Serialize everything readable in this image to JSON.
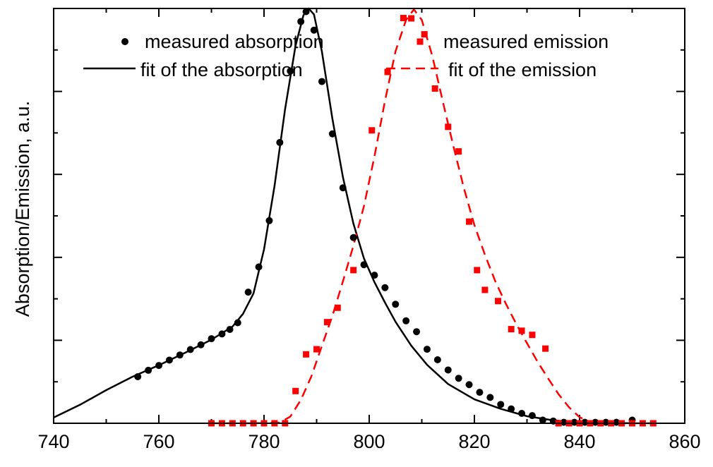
{
  "chart_data": {
    "type": "line",
    "title": "",
    "xlabel": "",
    "ylabel": "Absorption/Emission, a.u.",
    "xlim": [
      740,
      860
    ],
    "ylim": [
      0,
      1.3
    ],
    "x_ticks": [
      740,
      760,
      780,
      800,
      820,
      840,
      860
    ],
    "x_tick_labels": [
      "740",
      "760",
      "780",
      "800",
      "820",
      "840",
      "860"
    ],
    "y_ticks": [
      0.26,
      0.52,
      0.78,
      1.04
    ],
    "y_tick_labels_shown": false,
    "grid": false,
    "legend_position": "top",
    "colors": {
      "absorption": "#000000",
      "emission": "#ff0000"
    },
    "legend": [
      {
        "label": "measured absorption",
        "series": "measured_absorption"
      },
      {
        "label": "measured emission",
        "series": "measured_emission"
      },
      {
        "label": "fit of the absorption",
        "series": "fit_absorption"
      },
      {
        "label": "fit of the emission",
        "series": "fit_emission"
      }
    ],
    "series": [
      {
        "key": "measured_absorption",
        "style": "markers-circle",
        "color": "#000000",
        "points": [
          [
            756,
            0.146
          ],
          [
            758,
            0.166
          ],
          [
            760,
            0.181
          ],
          [
            762,
            0.198
          ],
          [
            764,
            0.214
          ],
          [
            766,
            0.231
          ],
          [
            768,
            0.246
          ],
          [
            770,
            0.265
          ],
          [
            772,
            0.28
          ],
          [
            773.5,
            0.294
          ],
          [
            775,
            0.315
          ],
          [
            777,
            0.411
          ],
          [
            779,
            0.49
          ],
          [
            781,
            0.635
          ],
          [
            783,
            0.88
          ],
          [
            785,
            1.104
          ],
          [
            787,
            1.259
          ],
          [
            788,
            1.29
          ],
          [
            789.5,
            1.232
          ],
          [
            791,
            1.071
          ],
          [
            793,
            0.907
          ],
          [
            795,
            0.738
          ],
          [
            797,
            0.582
          ],
          [
            799,
            0.497
          ],
          [
            801,
            0.464
          ],
          [
            803,
            0.425
          ],
          [
            805,
            0.373
          ],
          [
            807,
            0.321
          ],
          [
            809,
            0.287
          ],
          [
            811,
            0.232
          ],
          [
            813,
            0.199
          ],
          [
            815,
            0.167
          ],
          [
            817,
            0.141
          ],
          [
            819,
            0.121
          ],
          [
            821,
            0.097
          ],
          [
            823,
            0.081
          ],
          [
            825,
            0.059
          ],
          [
            827,
            0.045
          ],
          [
            829,
            0.031
          ],
          [
            831,
            0.024
          ],
          [
            833,
            0.01
          ],
          [
            835,
            0.007
          ],
          [
            837,
            0.003
          ],
          [
            839,
            0.003
          ],
          [
            841,
            0.003
          ],
          [
            843,
            0.003
          ],
          [
            845,
            0.003
          ],
          [
            847,
            0.003
          ],
          [
            850,
            0.01
          ]
        ]
      },
      {
        "key": "measured_emission",
        "style": "markers-square",
        "color": "#ff0000",
        "points": [
          [
            770,
            0.0
          ],
          [
            772,
            0.0
          ],
          [
            774,
            0.0
          ],
          [
            776,
            0.0
          ],
          [
            778,
            0.0
          ],
          [
            780,
            0.0
          ],
          [
            782,
            0.0
          ],
          [
            784,
            0.0
          ],
          [
            786,
            0.101
          ],
          [
            788,
            0.216
          ],
          [
            790,
            0.232
          ],
          [
            792,
            0.317
          ],
          [
            794,
            0.362
          ],
          [
            797,
            0.48
          ],
          [
            800.5,
            0.918
          ],
          [
            803.5,
            1.101
          ],
          [
            806.5,
            1.27
          ],
          [
            808,
            1.269
          ],
          [
            810.5,
            1.219
          ],
          [
            812.5,
            1.049
          ],
          [
            815,
            0.929
          ],
          [
            817,
            0.852
          ],
          [
            819,
            0.632
          ],
          [
            820.5,
            0.48
          ],
          [
            822,
            0.418
          ],
          [
            824.5,
            0.383
          ],
          [
            827,
            0.295
          ],
          [
            829,
            0.29
          ],
          [
            831,
            0.277
          ],
          [
            833.5,
            0.234
          ],
          [
            836,
            0.0
          ],
          [
            838,
            0.0
          ],
          [
            840,
            0.0
          ],
          [
            842,
            0.0
          ],
          [
            844,
            0.0
          ],
          [
            846,
            0.0
          ],
          [
            848,
            0.0
          ],
          [
            850,
            0.0
          ],
          [
            852,
            0.0
          ],
          [
            854,
            0.0
          ]
        ]
      },
      {
        "key": "fit_absorption",
        "style": "solid",
        "color": "#000000",
        "points": [
          [
            740,
            0.018
          ],
          [
            745,
            0.058
          ],
          [
            750,
            0.104
          ],
          [
            755,
            0.146
          ],
          [
            760,
            0.182
          ],
          [
            765,
            0.221
          ],
          [
            770,
            0.262
          ],
          [
            774,
            0.303
          ],
          [
            776,
            0.343
          ],
          [
            778,
            0.407
          ],
          [
            780,
            0.545
          ],
          [
            782,
            0.744
          ],
          [
            784,
            0.984
          ],
          [
            786,
            1.184
          ],
          [
            787.5,
            1.279
          ],
          [
            788.5,
            1.3
          ],
          [
            789.5,
            1.281
          ],
          [
            791,
            1.166
          ],
          [
            793,
            0.955
          ],
          [
            795,
            0.771
          ],
          [
            797,
            0.626
          ],
          [
            799,
            0.517
          ],
          [
            801,
            0.442
          ],
          [
            803,
            0.378
          ],
          [
            805,
            0.318
          ],
          [
            808,
            0.243
          ],
          [
            811,
            0.183
          ],
          [
            815,
            0.123
          ],
          [
            820,
            0.075
          ],
          [
            825,
            0.045
          ],
          [
            830,
            0.022
          ],
          [
            835,
            0.009
          ],
          [
            840,
            0.003
          ],
          [
            845,
            0.001
          ],
          [
            850,
            0.0
          ]
        ]
      },
      {
        "key": "fit_emission",
        "style": "dashed",
        "color": "#ff0000",
        "points": [
          [
            770,
            0.0
          ],
          [
            778,
            0.0
          ],
          [
            783,
            0.002
          ],
          [
            785,
            0.021
          ],
          [
            787,
            0.073
          ],
          [
            789,
            0.147
          ],
          [
            791,
            0.242
          ],
          [
            793,
            0.336
          ],
          [
            795,
            0.445
          ],
          [
            797,
            0.556
          ],
          [
            799,
            0.68
          ],
          [
            801,
            0.837
          ],
          [
            803,
            1.011
          ],
          [
            805,
            1.166
          ],
          [
            807,
            1.264
          ],
          [
            808.5,
            1.297
          ],
          [
            810,
            1.264
          ],
          [
            812,
            1.151
          ],
          [
            814,
            1.008
          ],
          [
            816,
            0.869
          ],
          [
            818,
            0.737
          ],
          [
            820,
            0.621
          ],
          [
            822,
            0.528
          ],
          [
            824,
            0.444
          ],
          [
            826,
            0.374
          ],
          [
            828,
            0.31
          ],
          [
            830,
            0.251
          ],
          [
            832,
            0.193
          ],
          [
            834,
            0.141
          ],
          [
            836,
            0.091
          ],
          [
            838,
            0.05
          ],
          [
            840,
            0.019
          ],
          [
            842,
            0.004
          ],
          [
            845,
            0.0
          ],
          [
            855,
            0.0
          ]
        ]
      }
    ]
  }
}
